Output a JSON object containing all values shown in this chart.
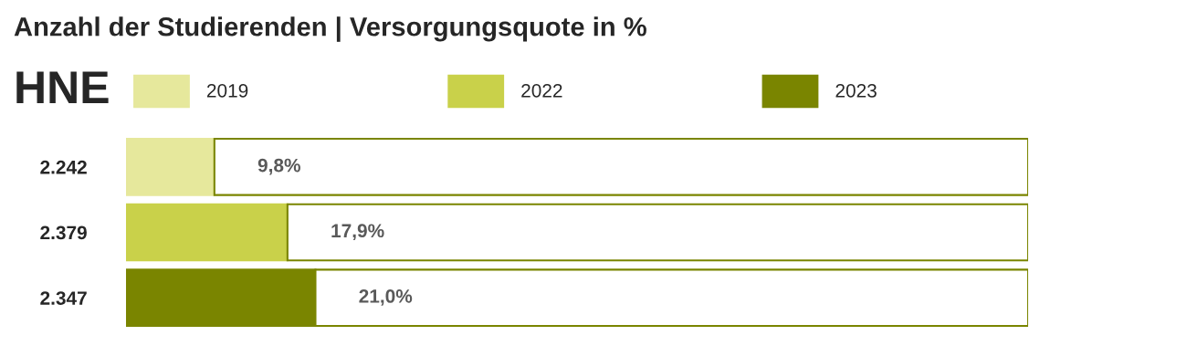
{
  "chart_data": {
    "type": "bar",
    "orientation": "horizontal",
    "stacked": true,
    "title": "Anzahl der Studierenden | Versorgungsquote in %",
    "subtitle": "HNE",
    "categories": [
      "2.242",
      "2.379",
      "2.347"
    ],
    "series": [
      {
        "name": "2019",
        "color": "#e6e89c",
        "values": [
          9.8,
          null,
          null
        ],
        "value_labels": [
          "9,8%",
          null,
          null
        ]
      },
      {
        "name": "2022",
        "color": "#c9d14a",
        "values": [
          null,
          17.9,
          null
        ],
        "value_labels": [
          null,
          "17,9%",
          null
        ]
      },
      {
        "name": "2023",
        "color": "#7a8500",
        "values": [
          null,
          null,
          21.0
        ],
        "value_labels": [
          null,
          null,
          "21,0%"
        ]
      },
      {
        "color": "#ffffff",
        "values": [
          90.2,
          82.1,
          79.0
        ]
      }
    ],
    "xlim": [
      0,
      100
    ],
    "tick_labels": "y",
    "legend": "top"
  }
}
